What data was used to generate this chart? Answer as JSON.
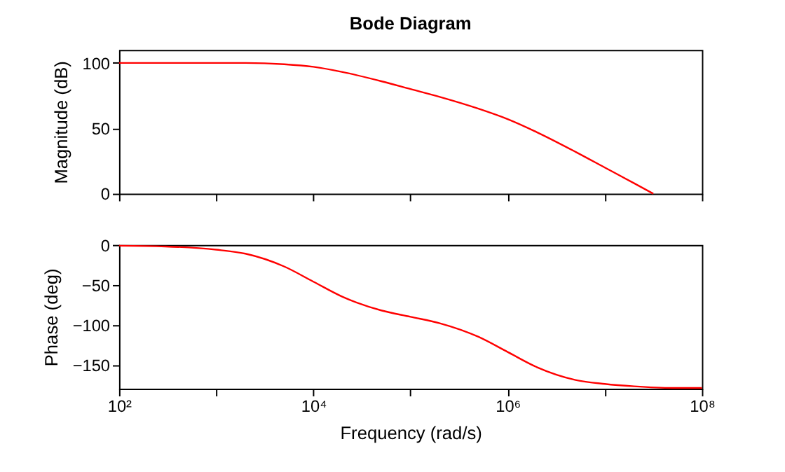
{
  "chart_data": [
    {
      "type": "line",
      "title": "Bode Diagram",
      "ylabel": "Magnitude (dB)",
      "x": [
        100,
        300,
        1000,
        2000,
        5000,
        10000,
        20000,
        50000,
        100000,
        200000,
        500000,
        1000000,
        2000000,
        5000000,
        10000000,
        20000000,
        31600000
      ],
      "series": [
        {
          "color": "#ff0000",
          "values": [
            100,
            100,
            100,
            100,
            99,
            97,
            93,
            86,
            80,
            74,
            65,
            57,
            47,
            32,
            20,
            8,
            0
          ]
        }
      ],
      "log": "x",
      "xlim": [
        100,
        100000000
      ],
      "xticks": [
        {
          "value": 100,
          "label": null
        },
        {
          "value": 1000,
          "label": null
        },
        {
          "value": 10000,
          "label": null
        },
        {
          "value": 100000,
          "label": null
        },
        {
          "value": 1000000,
          "label": null
        },
        {
          "value": 10000000,
          "label": null
        },
        {
          "value": 100000000,
          "label": null
        }
      ],
      "ylim": [
        0,
        110
      ],
      "yticks": [
        0,
        50,
        100
      ],
      "grid": false,
      "tick_labels": "y",
      "line_style": "solid",
      "marker": "none"
    },
    {
      "type": "line",
      "xlabel": "Frequency (rad/s)",
      "ylabel": "Phase (deg)",
      "x": [
        100,
        300,
        1000,
        2000,
        5000,
        10000,
        20000,
        50000,
        100000,
        200000,
        500000,
        1000000,
        2000000,
        5000000,
        10000000,
        20000000,
        50000000,
        100000000
      ],
      "series": [
        {
          "color": "#ff0000",
          "values": [
            -1,
            -2,
            -6,
            -11,
            -27,
            -46,
            -65,
            -82,
            -90,
            -98,
            -115,
            -134,
            -153,
            -169,
            -174,
            -177,
            -179,
            -179
          ]
        }
      ],
      "log": "x",
      "xlim": [
        100,
        100000000
      ],
      "xticks": [
        {
          "value": 100,
          "label": "10²"
        },
        {
          "value": 1000,
          "label": null
        },
        {
          "value": 10000,
          "label": "10⁴"
        },
        {
          "value": 100000,
          "label": null
        },
        {
          "value": 1000000,
          "label": "10⁶"
        },
        {
          "value": 10000000,
          "label": null
        },
        {
          "value": 100000000,
          "label": "10⁸"
        }
      ],
      "ylim": [
        -180,
        0
      ],
      "yticks": [
        0,
        -50,
        -100,
        -150
      ],
      "grid": false,
      "line_style": "solid",
      "marker": "none"
    }
  ]
}
